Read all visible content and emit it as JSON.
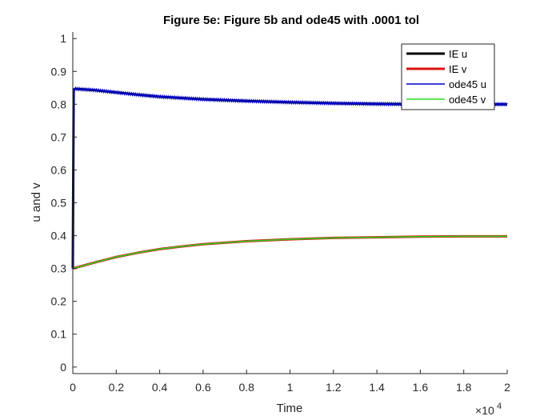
{
  "chart_data": {
    "type": "line",
    "title": "Figure 5e: Figure 5b and ode45 with .0001 tol",
    "xlabel": "Time",
    "ylabel": "u and v",
    "x_exponent_base": "×10",
    "x_exponent_power": "4",
    "xlim": [
      0,
      2
    ],
    "ylim": [
      -0.02,
      1.02
    ],
    "xticks": [
      0,
      0.2,
      0.4,
      0.6,
      0.8,
      1,
      1.2,
      1.4,
      1.6,
      1.8,
      2
    ],
    "xtick_labels": [
      "0",
      "0.2",
      "0.4",
      "0.6",
      "0.8",
      "1",
      "1.2",
      "1.4",
      "1.6",
      "1.8",
      "2"
    ],
    "yticks": [
      0,
      0.1,
      0.2,
      0.3,
      0.4,
      0.5,
      0.6,
      0.7,
      0.8,
      0.9,
      1
    ],
    "ytick_labels": [
      "0",
      "0.1",
      "0.2",
      "0.3",
      "0.4",
      "0.5",
      "0.6",
      "0.7",
      "0.8",
      "0.9",
      "1"
    ],
    "grid": false,
    "legend_position": "top-right",
    "series": [
      {
        "name": "IE u",
        "color": "#000000",
        "x": [
          0,
          0.004,
          0.01,
          0.1,
          0.2,
          0.3,
          0.4,
          0.6,
          0.8,
          1.0,
          1.2,
          1.4,
          1.6,
          1.8,
          2.0
        ],
        "values": [
          0.3,
          0.845,
          0.847,
          0.843,
          0.836,
          0.829,
          0.823,
          0.815,
          0.81,
          0.806,
          0.803,
          0.801,
          0.8,
          0.8,
          0.8
        ]
      },
      {
        "name": "IE v",
        "color": "#dd1111",
        "x": [
          0,
          0.1,
          0.2,
          0.3,
          0.4,
          0.5,
          0.6,
          0.8,
          1.0,
          1.2,
          1.4,
          1.6,
          1.8,
          2.0
        ],
        "values": [
          0.3,
          0.318,
          0.335,
          0.348,
          0.359,
          0.367,
          0.374,
          0.383,
          0.389,
          0.393,
          0.395,
          0.397,
          0.398,
          0.398
        ]
      },
      {
        "name": "ode45 u",
        "color": "#0000cc",
        "x": [
          0,
          0.004,
          0.01,
          0.1,
          0.2,
          0.3,
          0.4,
          0.6,
          0.8,
          1.0,
          1.2,
          1.4,
          1.6,
          1.8,
          2.0
        ],
        "values": [
          0.3,
          0.845,
          0.847,
          0.843,
          0.836,
          0.829,
          0.823,
          0.815,
          0.81,
          0.806,
          0.803,
          0.801,
          0.8,
          0.8,
          0.8
        ]
      },
      {
        "name": "ode45 v",
        "color": "#22dd22",
        "x": [
          0,
          0.1,
          0.2,
          0.3,
          0.4,
          0.5,
          0.6,
          0.8,
          1.0,
          1.2,
          1.4,
          1.6,
          1.8,
          2.0
        ],
        "values": [
          0.3,
          0.318,
          0.335,
          0.348,
          0.359,
          0.367,
          0.374,
          0.383,
          0.389,
          0.393,
          0.395,
          0.397,
          0.398,
          0.398
        ]
      }
    ]
  }
}
